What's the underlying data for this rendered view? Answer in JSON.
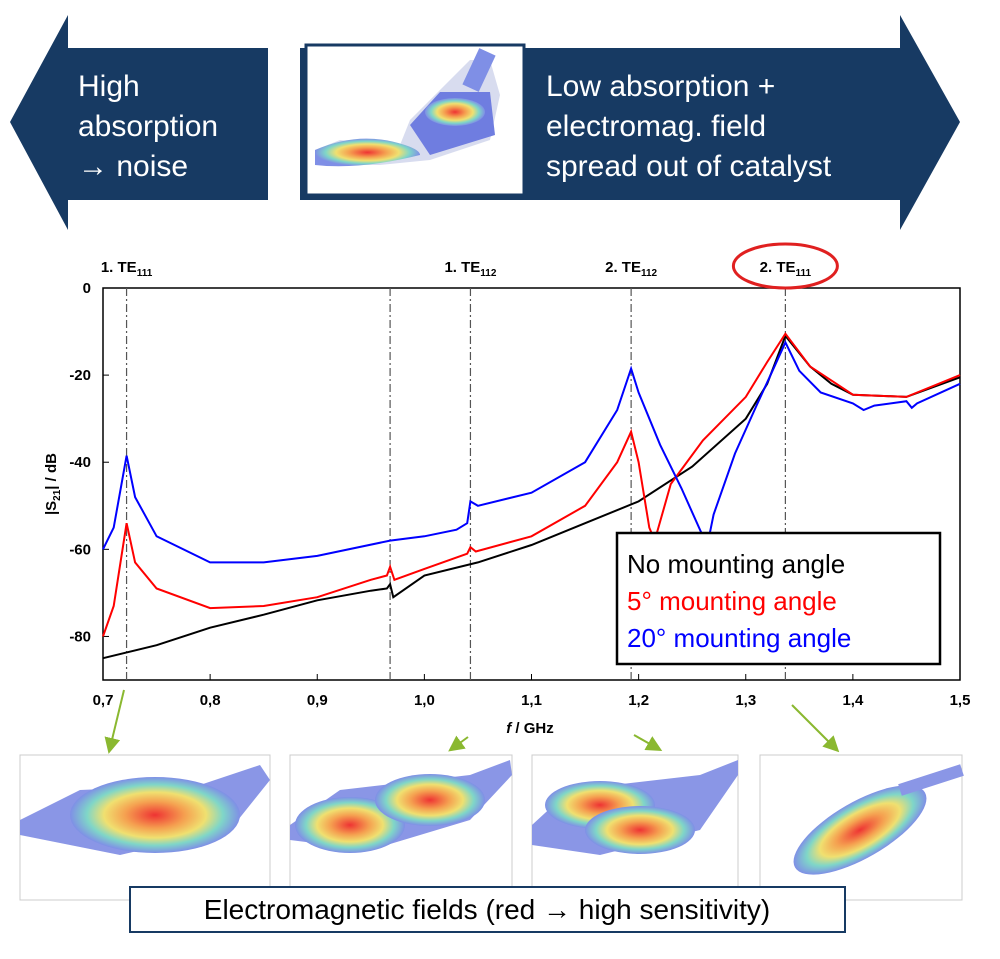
{
  "banner": {
    "left": [
      "High",
      "absorption",
      "→ noise"
    ],
    "right": [
      "Low absorption +",
      "electromag. field",
      "spread out of catalyst"
    ]
  },
  "chart_data": {
    "type": "line",
    "xlabel": [
      "f",
      " / GHz"
    ],
    "ylabel": [
      "|S",
      "21",
      "| / dB"
    ],
    "xlim": [
      0.7,
      1.5
    ],
    "ylim": [
      -90,
      0
    ],
    "xticks": [
      {
        "value": 0.7,
        "label": "0,7"
      },
      {
        "value": 0.8,
        "label": "0,8"
      },
      {
        "value": 0.9,
        "label": "0,9"
      },
      {
        "value": 1.0,
        "label": "1,0"
      },
      {
        "value": 1.1,
        "label": "1,1"
      },
      {
        "value": 1.2,
        "label": "1,2"
      },
      {
        "value": 1.3,
        "label": "1,3"
      },
      {
        "value": 1.4,
        "label": "1,4"
      },
      {
        "value": 1.5,
        "label": "1,5"
      }
    ],
    "yticks": [
      0,
      -20,
      -40,
      -60,
      -80
    ],
    "modes": [
      {
        "x": 0.722,
        "label": "1. TE",
        "sub": "111"
      },
      {
        "x": 0.968
      },
      {
        "x": 1.043,
        "label": "1. TE",
        "sub": "112"
      },
      {
        "x": 1.193,
        "label": "2. TE",
        "sub": "112"
      },
      {
        "x": 1.337,
        "label": "2. TE",
        "sub": "111"
      }
    ],
    "series": [
      {
        "name": "No mounting angle",
        "color": "#000000",
        "x": [
          0.7,
          0.75,
          0.8,
          0.85,
          0.9,
          0.95,
          0.965,
          0.968,
          0.971,
          1.0,
          1.05,
          1.1,
          1.15,
          1.2,
          1.25,
          1.3,
          1.32,
          1.337,
          1.36,
          1.38,
          1.4,
          1.45,
          1.5
        ],
        "values": [
          -85,
          -82,
          -78,
          -75,
          -71.7,
          -69.5,
          -69,
          -68,
          -71,
          -66,
          -63,
          -59,
          -54,
          -49,
          -41,
          -30,
          -22,
          -11,
          -18,
          -22,
          -24.5,
          -25,
          -20.5
        ]
      },
      {
        "name": "5° mounting angle",
        "color": "#ff0000",
        "x": [
          0.7,
          0.71,
          0.722,
          0.73,
          0.75,
          0.8,
          0.85,
          0.9,
          0.95,
          0.965,
          0.968,
          0.972,
          1.0,
          1.04,
          1.043,
          1.048,
          1.1,
          1.15,
          1.18,
          1.193,
          1.2,
          1.21,
          1.215,
          1.23,
          1.26,
          1.3,
          1.32,
          1.337,
          1.36,
          1.4,
          1.45,
          1.5
        ],
        "values": [
          -80,
          -73,
          -54,
          -63,
          -69,
          -73.5,
          -73,
          -71,
          -67,
          -66,
          -64,
          -67,
          -64.5,
          -61,
          -59.5,
          -60.5,
          -57,
          -50,
          -40,
          -33,
          -40,
          -55,
          -58,
          -45,
          -35,
          -25,
          -17,
          -10.5,
          -18,
          -24.5,
          -25,
          -20
        ]
      },
      {
        "name": "20° mounting angle",
        "color": "#0000ff",
        "x": [
          0.7,
          0.71,
          0.722,
          0.73,
          0.75,
          0.8,
          0.85,
          0.9,
          0.968,
          1.0,
          1.03,
          1.04,
          1.043,
          1.05,
          1.1,
          1.15,
          1.18,
          1.193,
          1.2,
          1.22,
          1.24,
          1.26,
          1.265,
          1.27,
          1.29,
          1.31,
          1.325,
          1.337,
          1.35,
          1.37,
          1.4,
          1.41,
          1.42,
          1.45,
          1.455,
          1.46,
          1.5
        ],
        "values": [
          -60,
          -55,
          -38.5,
          -48,
          -57,
          -63,
          -63,
          -61.5,
          -58,
          -57,
          -55.5,
          -54,
          -49,
          -50,
          -47,
          -40,
          -28,
          -18.5,
          -24,
          -36,
          -46,
          -57,
          -58,
          -52,
          -38,
          -27,
          -19,
          -12.5,
          -19,
          -24,
          -26.5,
          -28,
          -27,
          -26,
          -27.5,
          -26.5,
          -22
        ]
      }
    ]
  },
  "caption": "Electromagnetic fields (red → high sensitivity)"
}
